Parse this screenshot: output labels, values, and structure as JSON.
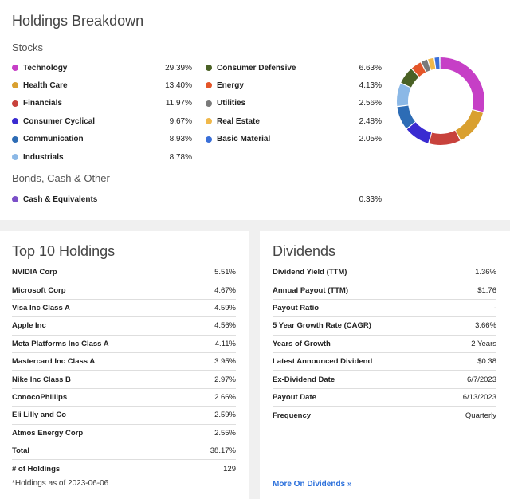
{
  "holdings": {
    "title": "Holdings Breakdown",
    "stocks_label": "Stocks",
    "left_sectors": [
      {
        "name": "Technology",
        "value": "29.39%",
        "color": "#c63fc6"
      },
      {
        "name": "Health Care",
        "value": "13.40%",
        "color": "#d9a030"
      },
      {
        "name": "Financials",
        "value": "11.97%",
        "color": "#c8423c"
      },
      {
        "name": "Consumer Cyclical",
        "value": "9.67%",
        "color": "#3a2bd1"
      },
      {
        "name": "Communication",
        "value": "8.93%",
        "color": "#2d6cb5"
      },
      {
        "name": "Industrials",
        "value": "8.78%",
        "color": "#8bb8e6"
      }
    ],
    "right_sectors": [
      {
        "name": "Consumer Defensive",
        "value": "6.63%",
        "color": "#4a6125"
      },
      {
        "name": "Energy",
        "value": "4.13%",
        "color": "#e45528"
      },
      {
        "name": "Utilities",
        "value": "2.56%",
        "color": "#7a7a7a"
      },
      {
        "name": "Real Estate",
        "value": "2.48%",
        "color": "#f0b84a"
      },
      {
        "name": "Basic Material",
        "value": "2.05%",
        "color": "#3a6fd8"
      }
    ],
    "other_label": "Bonds, Cash & Other",
    "other_items": [
      {
        "name": "Cash & Equivalents",
        "value": "0.33%",
        "color": "#7b4fc8"
      }
    ]
  },
  "top10": {
    "title": "Top 10 Holdings",
    "rows": [
      {
        "label": "NVIDIA Corp",
        "value": "5.51%"
      },
      {
        "label": "Microsoft Corp",
        "value": "4.67%"
      },
      {
        "label": "Visa Inc Class A",
        "value": "4.59%"
      },
      {
        "label": "Apple Inc",
        "value": "4.56%"
      },
      {
        "label": "Meta Platforms Inc Class A",
        "value": "4.11%"
      },
      {
        "label": "Mastercard Inc Class A",
        "value": "3.95%"
      },
      {
        "label": "Nike Inc Class B",
        "value": "2.97%"
      },
      {
        "label": "ConocoPhillips",
        "value": "2.66%"
      },
      {
        "label": "Eli Lilly and Co",
        "value": "2.59%"
      },
      {
        "label": "Atmos Energy Corp",
        "value": "2.55%"
      },
      {
        "label": "Total",
        "value": "38.17%"
      },
      {
        "label": "# of Holdings",
        "value": "129"
      }
    ],
    "footnote": "*Holdings as of 2023-06-06"
  },
  "dividends": {
    "title": "Dividends",
    "rows": [
      {
        "label": "Dividend Yield (TTM)",
        "value": "1.36%"
      },
      {
        "label": "Annual Payout (TTM)",
        "value": "$1.76"
      },
      {
        "label": "Payout Ratio",
        "value": "-"
      },
      {
        "label": "5 Year Growth Rate (CAGR)",
        "value": "3.66%"
      },
      {
        "label": "Years of Growth",
        "value": "2 Years"
      },
      {
        "label": "Latest Announced Dividend",
        "value": "$0.38"
      },
      {
        "label": "Ex-Dividend Date",
        "value": "6/7/2023"
      },
      {
        "label": "Payout Date",
        "value": "6/13/2023"
      },
      {
        "label": "Frequency",
        "value": "Quarterly"
      }
    ],
    "more_link": "More On Dividends »"
  },
  "chart_data": {
    "type": "pie",
    "categories": [
      "Technology",
      "Health Care",
      "Financials",
      "Consumer Cyclical",
      "Communication",
      "Industrials",
      "Consumer Defensive",
      "Energy",
      "Utilities",
      "Real Estate",
      "Basic Material",
      "Cash & Equivalents"
    ],
    "values": [
      29.39,
      13.4,
      11.97,
      9.67,
      8.93,
      8.78,
      6.63,
      4.13,
      2.56,
      2.48,
      2.05,
      0.33
    ],
    "colors": [
      "#c63fc6",
      "#d9a030",
      "#c8423c",
      "#3a2bd1",
      "#2d6cb5",
      "#8bb8e6",
      "#4a6125",
      "#e45528",
      "#7a7a7a",
      "#f0b84a",
      "#3a6fd8",
      "#7b4fc8"
    ],
    "donut": true
  }
}
